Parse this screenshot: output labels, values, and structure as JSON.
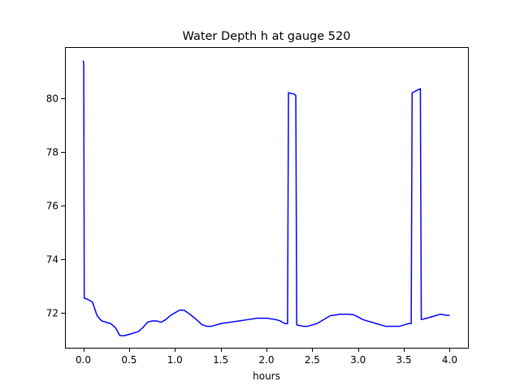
{
  "chart_data": {
    "type": "line",
    "title": "Water Depth h at gauge 520",
    "xlabel": "hours",
    "ylabel": "",
    "xlim": [
      -0.2,
      4.2
    ],
    "ylim": [
      70.7,
      81.9
    ],
    "xticks": [
      0.0,
      0.5,
      1.0,
      1.5,
      2.0,
      2.5,
      3.0,
      3.5,
      4.0
    ],
    "xtick_labels": [
      "0.0",
      "0.5",
      "1.0",
      "1.5",
      "2.0",
      "2.5",
      "3.0",
      "3.5",
      "4.0"
    ],
    "yticks": [
      72,
      74,
      76,
      78,
      80
    ],
    "ytick_labels": [
      "72",
      "74",
      "76",
      "78",
      "80"
    ],
    "grid": false,
    "legend": null,
    "series": [
      {
        "color": "#0000ff",
        "x": [
          0.0,
          0.005,
          0.005,
          0.01,
          0.01,
          0.05,
          0.1,
          0.12,
          0.15,
          0.2,
          0.25,
          0.3,
          0.35,
          0.4,
          0.45,
          0.5,
          0.55,
          0.6,
          0.65,
          0.7,
          0.75,
          0.8,
          0.85,
          0.9,
          0.95,
          1.0,
          1.05,
          1.1,
          1.15,
          1.2,
          1.25,
          1.3,
          1.35,
          1.4,
          1.45,
          1.5,
          1.6,
          1.7,
          1.8,
          1.9,
          2.0,
          2.1,
          2.15,
          2.2,
          2.23,
          2.24,
          2.3,
          2.32,
          2.33,
          2.4,
          2.45,
          2.5,
          2.55,
          2.6,
          2.65,
          2.7,
          2.75,
          2.8,
          2.85,
          2.9,
          2.95,
          3.0,
          3.05,
          3.1,
          3.15,
          3.2,
          3.25,
          3.3,
          3.35,
          3.4,
          3.45,
          3.5,
          3.55,
          3.58,
          3.59,
          3.65,
          3.68,
          3.69,
          3.75,
          3.8,
          3.85,
          3.9,
          3.95,
          4.0
        ],
        "y": [
          81.4,
          81.2,
          81.1,
          72.6,
          72.55,
          72.5,
          72.4,
          72.2,
          71.9,
          71.7,
          71.65,
          71.6,
          71.45,
          71.15,
          71.15,
          71.2,
          71.25,
          71.3,
          71.45,
          71.65,
          71.7,
          71.7,
          71.65,
          71.75,
          71.9,
          72.0,
          72.1,
          72.1,
          71.98,
          71.85,
          71.7,
          71.55,
          71.5,
          71.5,
          71.55,
          71.6,
          71.65,
          71.7,
          71.75,
          71.8,
          71.8,
          71.75,
          71.7,
          71.6,
          71.6,
          80.2,
          80.15,
          80.1,
          71.55,
          71.5,
          71.5,
          71.55,
          71.6,
          71.7,
          71.8,
          71.9,
          71.92,
          71.95,
          71.95,
          71.95,
          71.93,
          71.85,
          71.75,
          71.7,
          71.65,
          71.6,
          71.55,
          71.5,
          71.5,
          71.5,
          71.5,
          71.55,
          71.6,
          71.6,
          80.2,
          80.3,
          80.35,
          71.75,
          71.8,
          71.85,
          71.9,
          71.95,
          71.92,
          71.9
        ]
      }
    ]
  }
}
